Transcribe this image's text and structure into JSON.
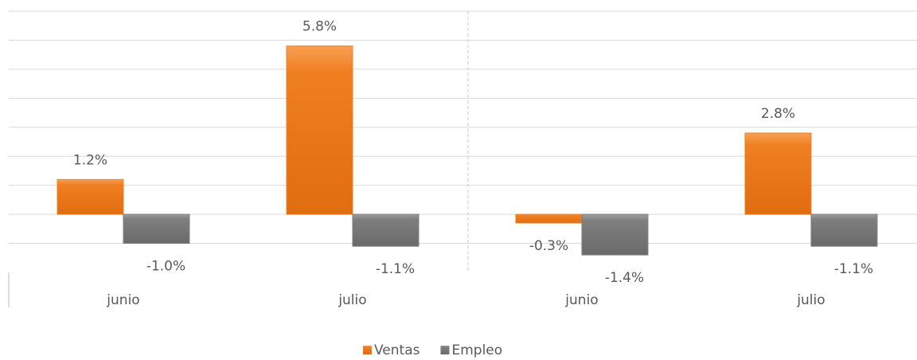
{
  "chart_data": {
    "type": "bar",
    "categories": [
      "junio",
      "julio",
      "junio",
      "julio"
    ],
    "series": [
      {
        "name": "Ventas",
        "color": "#f07f22",
        "values": [
          1.2,
          5.8,
          -0.3,
          2.8
        ],
        "value_labels": [
          "1.2%",
          "5.8%",
          "-0.3%",
          "2.8%"
        ]
      },
      {
        "name": "Empleo",
        "color": "#7f7f7f",
        "values": [
          -1.0,
          -1.1,
          -1.4,
          -1.1
        ],
        "value_labels": [
          "-1.0%",
          "-1.1%",
          "-1.4%",
          "-1.1%"
        ]
      }
    ],
    "ylim": [
      -2,
      7
    ],
    "yticks": [
      -1,
      0,
      1,
      2,
      3,
      4,
      5,
      6,
      7
    ],
    "grid": true,
    "legend": "bottom"
  }
}
